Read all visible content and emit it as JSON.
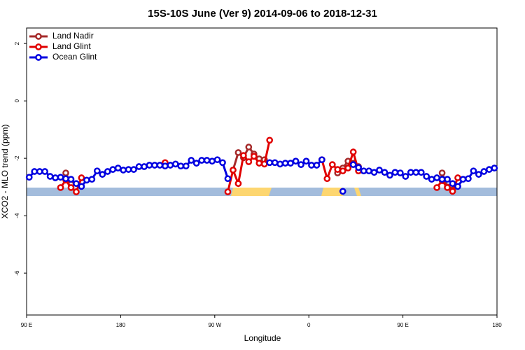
{
  "chart_data": {
    "type": "line",
    "title": "15S-10S June (Ver 9)   2014-09-06 to 2018-12-31",
    "x_label": "Longitude",
    "y_label": "XCO2 - MLO trend (ppm)",
    "xlim": [
      90,
      540
    ],
    "xticks": [
      {
        "value": 90,
        "label": "90 E"
      },
      {
        "value": 180,
        "label": "180"
      },
      {
        "value": 270,
        "label": "90 W"
      },
      {
        "value": 360,
        "label": "0"
      },
      {
        "value": 450,
        "label": "90 E"
      },
      {
        "value": 540,
        "label": "180"
      }
    ],
    "ylim": [
      -7.46,
      2.54
    ],
    "yticks": [
      -6,
      -4,
      -2,
      0,
      2
    ],
    "legend": "top-left",
    "x": [
      92.5,
      97.5,
      102.5,
      107.5,
      112.5,
      117.5,
      122.5,
      127.5,
      132.5,
      137.5,
      142.5,
      147.5,
      152.5,
      157.5,
      162.5,
      167.5,
      172.5,
      177.5,
      182.5,
      187.5,
      192.5,
      197.5,
      202.5,
      207.5,
      212.5,
      217.5,
      222.5,
      227.5,
      232.5,
      237.5,
      242.5,
      247.5,
      252.5,
      257.5,
      262.5,
      267.5,
      272.5,
      277.5,
      282.5,
      287.5,
      292.5,
      297.5,
      302.5,
      307.5,
      312.5,
      317.5,
      322.5,
      327.5,
      332.5,
      337.5,
      342.5,
      347.5,
      352.5,
      357.5,
      362.5,
      367.5,
      372.5,
      377.5,
      382.5,
      387.5,
      392.5,
      397.5,
      402.5,
      407.5,
      412.5,
      417.5,
      422.5,
      427.5,
      432.5,
      437.5,
      442.5,
      447.5,
      452.5,
      457.5,
      462.5,
      467.5,
      472.5,
      477.5,
      482.5,
      487.5,
      492.5,
      497.5,
      502.5,
      507.5,
      512.5,
      517.5,
      522.5,
      527.5,
      532.5,
      537.5
    ],
    "series": [
      {
        "name": "Land Nadir",
        "color": "#a52a2a",
        "values": [
          null,
          null,
          null,
          null,
          null,
          null,
          null,
          -2.51,
          -2.9,
          null,
          null,
          null,
          null,
          null,
          null,
          null,
          null,
          null,
          null,
          null,
          null,
          null,
          null,
          null,
          null,
          null,
          null,
          null,
          null,
          null,
          null,
          null,
          null,
          null,
          null,
          null,
          null,
          null,
          null,
          -2.41,
          -1.8,
          -1.98,
          -1.61,
          -1.85,
          -2.02,
          -2.05,
          null,
          null,
          null,
          null,
          null,
          null,
          null,
          null,
          null,
          null,
          null,
          null,
          null,
          -2.51,
          -2.34,
          -2.1,
          -2.17,
          -2.29,
          null,
          null,
          null,
          null,
          null,
          null,
          null,
          null,
          null,
          null,
          null,
          null,
          null,
          null,
          null,
          -2.51,
          -3.0,
          -3.1,
          null,
          null,
          null,
          null,
          null,
          null,
          null,
          null
        ]
      },
      {
        "name": "Land Glint",
        "color": "#e00000",
        "values": [
          null,
          null,
          null,
          null,
          null,
          null,
          -3.02,
          -2.76,
          -3.02,
          -3.17,
          -2.68,
          null,
          null,
          null,
          null,
          null,
          null,
          null,
          null,
          null,
          null,
          null,
          null,
          null,
          null,
          null,
          -2.15,
          null,
          null,
          null,
          null,
          null,
          null,
          null,
          null,
          null,
          null,
          null,
          -3.17,
          -2.41,
          -2.88,
          -1.9,
          -2.12,
          -1.93,
          -2.17,
          -2.2,
          -1.37,
          null,
          null,
          null,
          null,
          null,
          null,
          null,
          null,
          null,
          -2.05,
          -2.71,
          -2.22,
          -2.39,
          -2.44,
          -2.34,
          -1.78,
          -2.44,
          null,
          null,
          null,
          null,
          null,
          null,
          null,
          null,
          null,
          null,
          null,
          null,
          null,
          null,
          -3.02,
          -2.78,
          -3.02,
          -3.15,
          -2.68,
          null,
          null,
          null,
          null,
          null,
          null,
          null
        ]
      },
      {
        "name": "Ocean Glint",
        "color": "#0000e0",
        "values": [
          -2.66,
          -2.46,
          -2.46,
          -2.46,
          -2.63,
          -2.68,
          -2.66,
          -2.71,
          -2.73,
          -2.88,
          -2.98,
          -2.76,
          -2.73,
          -2.44,
          -2.56,
          -2.46,
          -2.39,
          -2.34,
          -2.41,
          -2.39,
          -2.39,
          -2.29,
          -2.29,
          -2.24,
          -2.24,
          -2.24,
          -2.27,
          -2.24,
          -2.2,
          -2.27,
          -2.27,
          -2.07,
          -2.17,
          -2.07,
          -2.07,
          -2.1,
          -2.05,
          -2.15,
          -2.71,
          null,
          null,
          null,
          null,
          null,
          null,
          null,
          -2.15,
          -2.15,
          -2.2,
          -2.17,
          -2.17,
          -2.1,
          -2.22,
          -2.1,
          -2.24,
          -2.24,
          -2.05,
          null,
          null,
          null,
          -3.15,
          null,
          -2.22,
          -2.32,
          -2.44,
          -2.44,
          -2.49,
          -2.41,
          -2.49,
          -2.59,
          -2.49,
          -2.51,
          -2.63,
          -2.49,
          -2.49,
          -2.49,
          -2.63,
          -2.73,
          -2.68,
          -2.73,
          -2.73,
          -2.88,
          -2.98,
          -2.73,
          -2.71,
          -2.44,
          -2.56,
          -2.46,
          -2.39,
          -2.34
        ]
      }
    ]
  }
}
